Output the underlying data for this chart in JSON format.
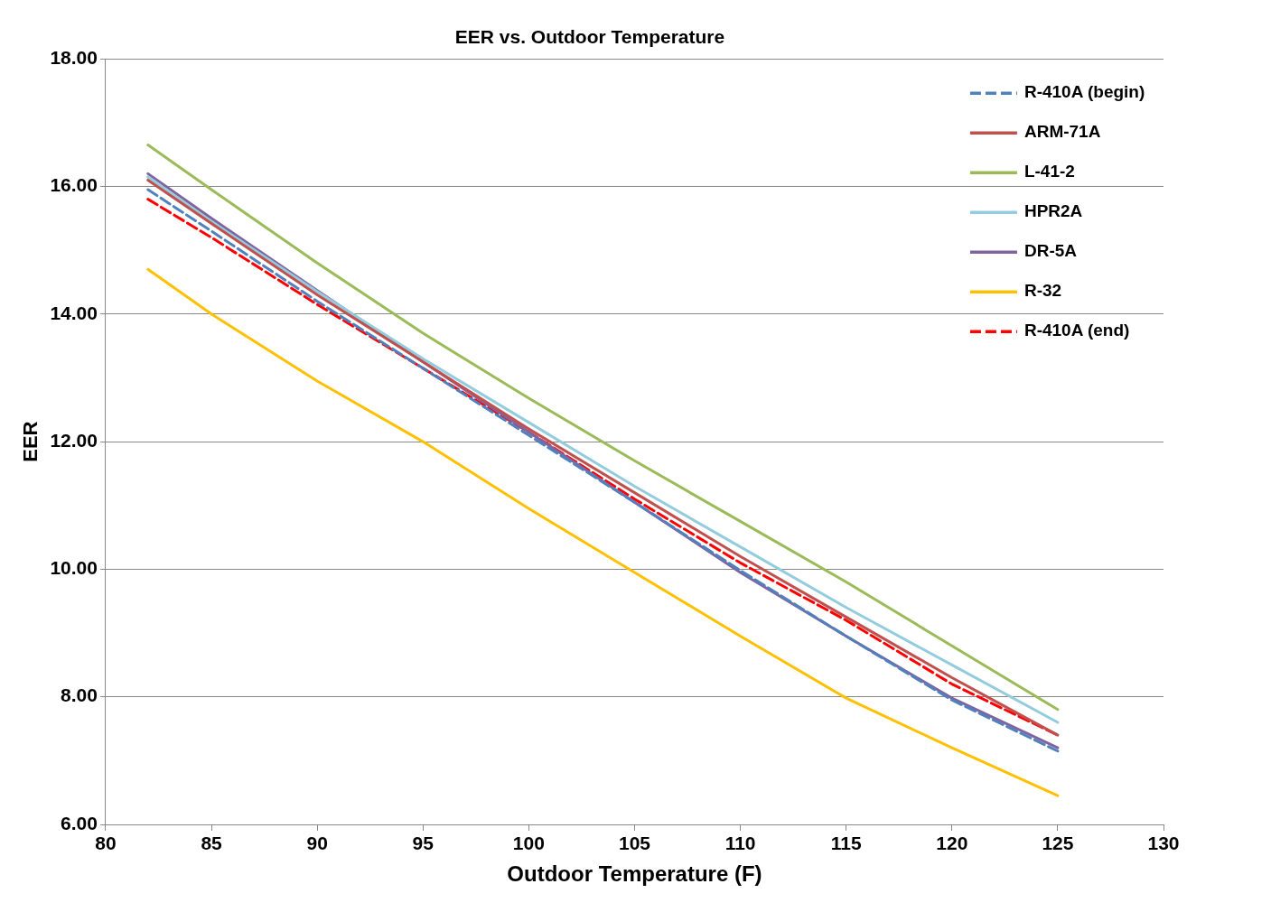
{
  "chart_data": {
    "type": "line",
    "title": "EER vs. Outdoor Temperature",
    "xlabel": "Outdoor Temperature (F)",
    "ylabel": "EER",
    "x": [
      82,
      85,
      90,
      95,
      100,
      105,
      110,
      115,
      120,
      125
    ],
    "xlim": [
      80,
      130
    ],
    "xticks": [
      80,
      85,
      90,
      95,
      100,
      105,
      110,
      115,
      120,
      125,
      130
    ],
    "ylim": [
      6,
      18
    ],
    "yticks": [
      {
        "value": 6,
        "label": "6.00"
      },
      {
        "value": 8,
        "label": "8.00"
      },
      {
        "value": 10,
        "label": "10.00"
      },
      {
        "value": 12,
        "label": "12.00"
      },
      {
        "value": 14,
        "label": "14.00"
      },
      {
        "value": 16,
        "label": "16.00"
      },
      {
        "value": 18,
        "label": "18.00"
      }
    ],
    "grid": "y",
    "legend": "top right",
    "marker": "none",
    "series": [
      {
        "name": "R-410A (begin)",
        "color": "#4f81bd",
        "line_style": "dashed",
        "values": [
          15.95,
          15.3,
          14.2,
          13.15,
          12.1,
          11.05,
          9.98,
          8.95,
          7.95,
          7.15
        ]
      },
      {
        "name": "ARM-71A",
        "color": "#c0504d",
        "line_style": "solid",
        "values": [
          16.1,
          15.42,
          14.3,
          13.25,
          12.2,
          11.2,
          10.2,
          9.25,
          8.3,
          7.4
        ]
      },
      {
        "name": "L-41-2",
        "color": "#9bbb59",
        "line_style": "solid",
        "values": [
          16.65,
          15.95,
          14.8,
          13.7,
          12.68,
          11.7,
          10.75,
          9.8,
          8.8,
          7.8
        ]
      },
      {
        "name": "HPR2A",
        "color": "#93cddd",
        "line_style": "solid",
        "values": [
          16.15,
          15.45,
          14.35,
          13.3,
          12.3,
          11.3,
          10.35,
          9.4,
          8.5,
          7.6
        ]
      },
      {
        "name": "DR-5A",
        "color": "#8064a2",
        "line_style": "solid",
        "values": [
          16.2,
          15.5,
          14.37,
          13.25,
          12.15,
          11.05,
          9.95,
          8.95,
          7.98,
          7.2
        ]
      },
      {
        "name": "R-32",
        "color": "#ffc000",
        "line_style": "solid",
        "values": [
          14.7,
          14.0,
          12.95,
          12.0,
          10.95,
          9.95,
          8.95,
          7.98,
          7.2,
          6.45
        ]
      },
      {
        "name": "R-410A (end)",
        "color": "#ff0000",
        "line_style": "dashed",
        "values": [
          15.8,
          15.2,
          14.15,
          13.15,
          12.15,
          11.1,
          10.1,
          9.2,
          8.2,
          7.4
        ]
      }
    ]
  }
}
